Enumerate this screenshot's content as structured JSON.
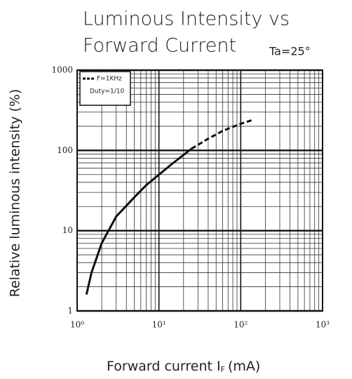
{
  "chart_data": {
    "type": "line",
    "title": [
      "Luminous Intensity vs",
      "Forward Current"
    ],
    "annotation": "Ta=25°",
    "ylabel": "Relative luminous intensity (%)",
    "xlabel": [
      "Forward current I",
      "F",
      "(mA)"
    ],
    "xscale": "log",
    "yscale": "log",
    "grid": true,
    "xlim": [
      1,
      1000
    ],
    "ylim": [
      1,
      1000
    ],
    "xticks": [
      {
        "value": 1,
        "label": "10⁰"
      },
      {
        "value": 10,
        "label": "10¹"
      },
      {
        "value": 100,
        "label": "10²"
      },
      {
        "value": 1000,
        "label": "10³"
      }
    ],
    "yticks": [
      1,
      10,
      100,
      1000
    ],
    "legend": "upper left",
    "series": [
      {
        "color": "#111111",
        "dashed": false,
        "x": [
          1.3,
          1.5,
          2,
          3,
          5,
          7,
          10,
          15,
          20,
          25
        ],
        "values": [
          1.6,
          3,
          7,
          15,
          26,
          37,
          50,
          70,
          88,
          105
        ]
      },
      {
        "name": "F=1KHz",
        "legend_note": "Duty=1/10",
        "color": "#111111",
        "dashed": true,
        "x": [
          25,
          40,
          60,
          100,
          140
        ],
        "values": [
          105,
          140,
          175,
          215,
          240
        ]
      }
    ]
  }
}
